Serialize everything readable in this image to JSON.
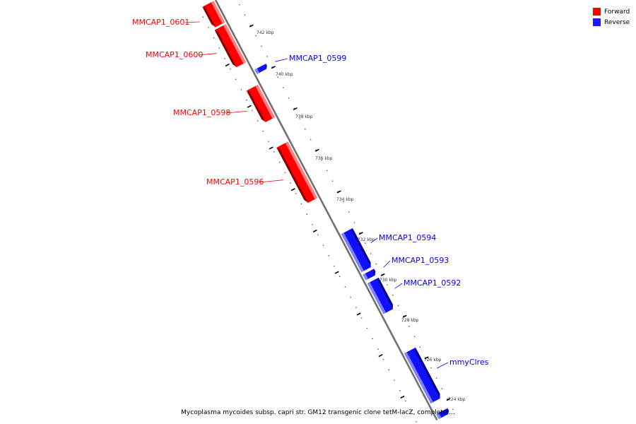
{
  "legend": {
    "items": [
      {
        "label": "Forward",
        "color": "#ff0000"
      },
      {
        "label": "Reverse",
        "color": "#0000ff"
      }
    ]
  },
  "caption": "Mycoplasma mycoides subsp. capri str. GM12 transgenic clone tetM-lacZ, complete ...",
  "ticks": [
    "742 kbp",
    "740 kbp",
    "738 kbp",
    "736 kbp",
    "734 kbp",
    "732 kbp",
    "730 kbp",
    "728 kbp",
    "726 kbp",
    "724 kbp"
  ],
  "genes": [
    {
      "name": "MMCAP1_0601",
      "strand": "forward"
    },
    {
      "name": "MMCAP1_0600",
      "strand": "forward"
    },
    {
      "name": "MMCAP1_0599",
      "strand": "reverse"
    },
    {
      "name": "MMCAP1_0598",
      "strand": "forward"
    },
    {
      "name": "MMCAP1_0596",
      "strand": "forward"
    },
    {
      "name": "MMCAP1_0594",
      "strand": "reverse"
    },
    {
      "name": "MMCAP1_0593",
      "strand": "reverse"
    },
    {
      "name": "MMCAP1_0592",
      "strand": "reverse"
    },
    {
      "name": "mmyClres",
      "strand": "reverse"
    },
    {
      "name": "",
      "strand": "reverse"
    }
  ],
  "colors": {
    "forward": "#ff0000",
    "reverse": "#0000ff",
    "axis": "#808080"
  }
}
